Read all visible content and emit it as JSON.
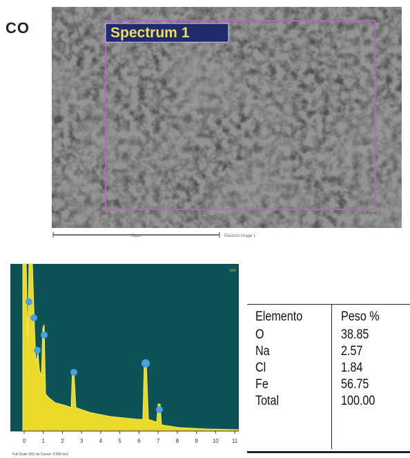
{
  "header": {
    "partial_title": "CO"
  },
  "sem_image": {
    "label": "Spectrum 1",
    "scale_bar": "50µm",
    "caption": "Electron Image 1"
  },
  "spectrum": {
    "x_ticks": [
      "0",
      "1",
      "2",
      "3",
      "4",
      "5",
      "6",
      "7",
      "8",
      "9",
      "10",
      "11"
    ],
    "footer": "Full Scale 383 cts Cursor: 0.000 keV",
    "corner": "keV"
  },
  "table": {
    "header": [
      "Elemento",
      "Peso %"
    ],
    "rows": [
      [
        "O",
        "38.85"
      ],
      [
        "Na",
        "2.57"
      ],
      [
        "Cl",
        "1.84"
      ],
      [
        "Fe",
        "56.75"
      ],
      [
        "Total",
        "100.00"
      ]
    ]
  }
}
